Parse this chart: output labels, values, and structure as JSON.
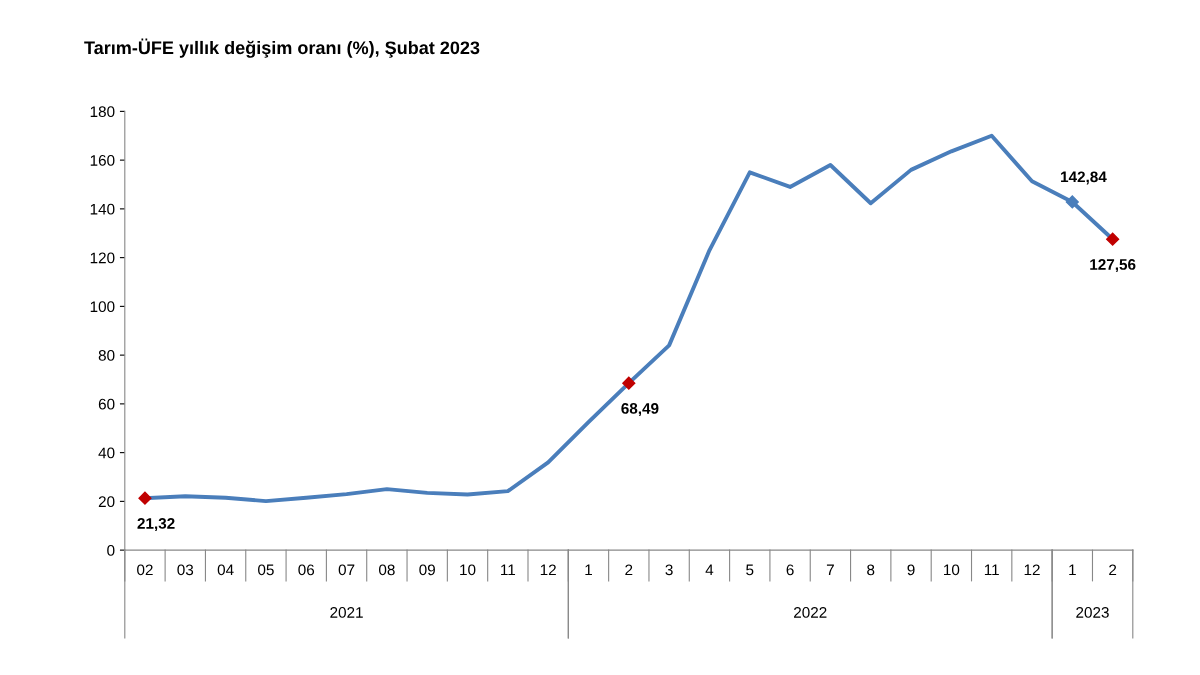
{
  "chart_data": {
    "type": "line",
    "title": "Tarım-ÜFE yıllık değişim oranı (%), Şubat 2023",
    "categories": [
      "02",
      "03",
      "04",
      "05",
      "06",
      "07",
      "08",
      "09",
      "10",
      "11",
      "12",
      "1",
      "2",
      "3",
      "4",
      "5",
      "6",
      "7",
      "8",
      "9",
      "10",
      "11",
      "12",
      "1",
      "2"
    ],
    "series": [
      {
        "color": "#4a7ebb",
        "values": [
          21.32,
          22.1,
          21.5,
          20.1,
          21.5,
          23,
          25,
          23.5,
          22.8,
          24.2,
          36,
          52.5,
          68.49,
          84,
          123,
          155,
          149,
          158,
          142.3,
          156,
          163.6,
          170,
          151.3,
          142.84,
          127.56
        ],
        "colors": [
          "#c00000",
          "#4a7ebb",
          "#4a7ebb",
          "#4a7ebb",
          "#4a7ebb",
          "#4a7ebb",
          "#4a7ebb",
          "#4a7ebb",
          "#4a7ebb",
          "#4a7ebb",
          "#4a7ebb",
          "#4a7ebb",
          "#c00000",
          "#4a7ebb",
          "#4a7ebb",
          "#4a7ebb",
          "#4a7ebb",
          "#4a7ebb",
          "#4a7ebb",
          "#4a7ebb",
          "#4a7ebb",
          "#4a7ebb",
          "#4a7ebb",
          "#4a7ebb",
          "#c00000"
        ],
        "value_labels": [
          "21,32",
          null,
          null,
          null,
          null,
          null,
          null,
          null,
          null,
          null,
          null,
          null,
          "68,49",
          null,
          null,
          null,
          null,
          null,
          null,
          null,
          null,
          null,
          null,
          "142,84",
          "127,56"
        ]
      }
    ],
    "annotations": [
      "2021",
      "2022",
      "2023"
    ],
    "ylim": [
      0,
      180
    ],
    "yticks": [
      0,
      20,
      40,
      60,
      80,
      100,
      120,
      140,
      160,
      180
    ],
    "grid": false,
    "legend": false
  }
}
